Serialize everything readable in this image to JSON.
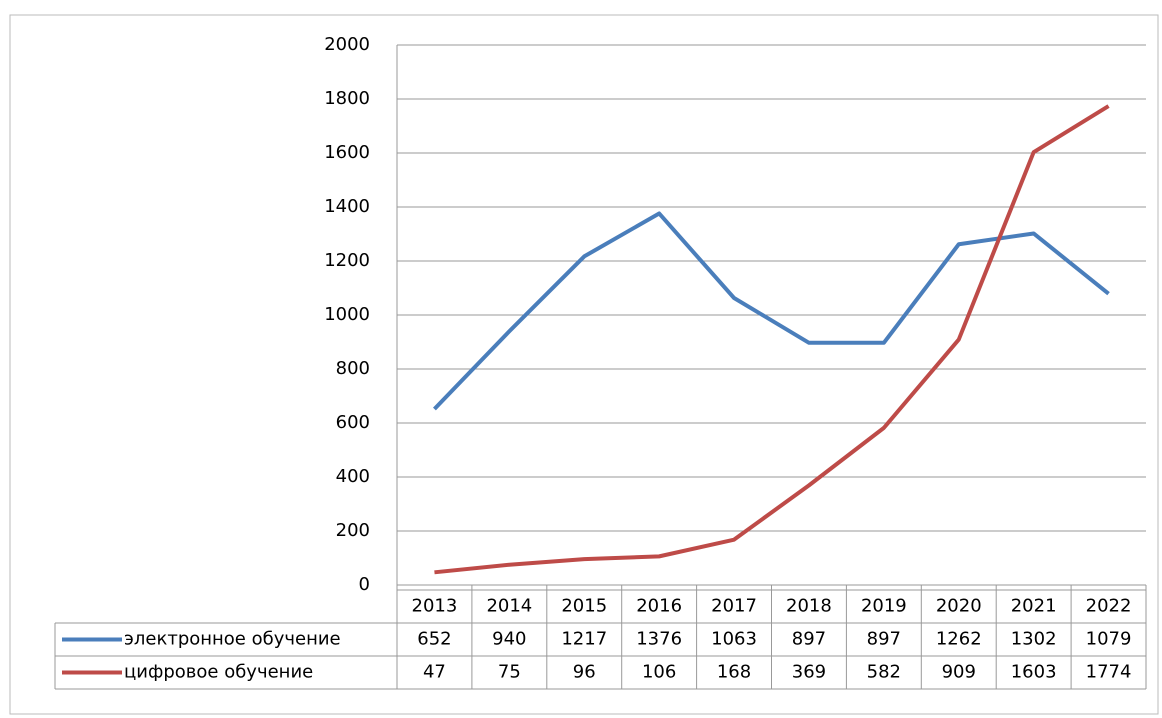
{
  "chart_data": {
    "type": "line",
    "categories": [
      "2013",
      "2014",
      "2015",
      "2016",
      "2017",
      "2018",
      "2019",
      "2020",
      "2021",
      "2022"
    ],
    "series": [
      {
        "name": "электронное обучение",
        "color": "#4a7ebb",
        "values": [
          652,
          940,
          1217,
          1376,
          1063,
          897,
          897,
          1262,
          1302,
          1079
        ]
      },
      {
        "name": "цифровое обучение",
        "color": "#be4b48",
        "values": [
          47,
          75,
          96,
          106,
          168,
          369,
          582,
          909,
          1603,
          1774
        ]
      }
    ],
    "ylim": [
      0,
      2000
    ],
    "yticks": [
      0,
      200,
      400,
      600,
      800,
      1000,
      1200,
      1400,
      1600,
      1800,
      2000
    ],
    "grid": true
  }
}
